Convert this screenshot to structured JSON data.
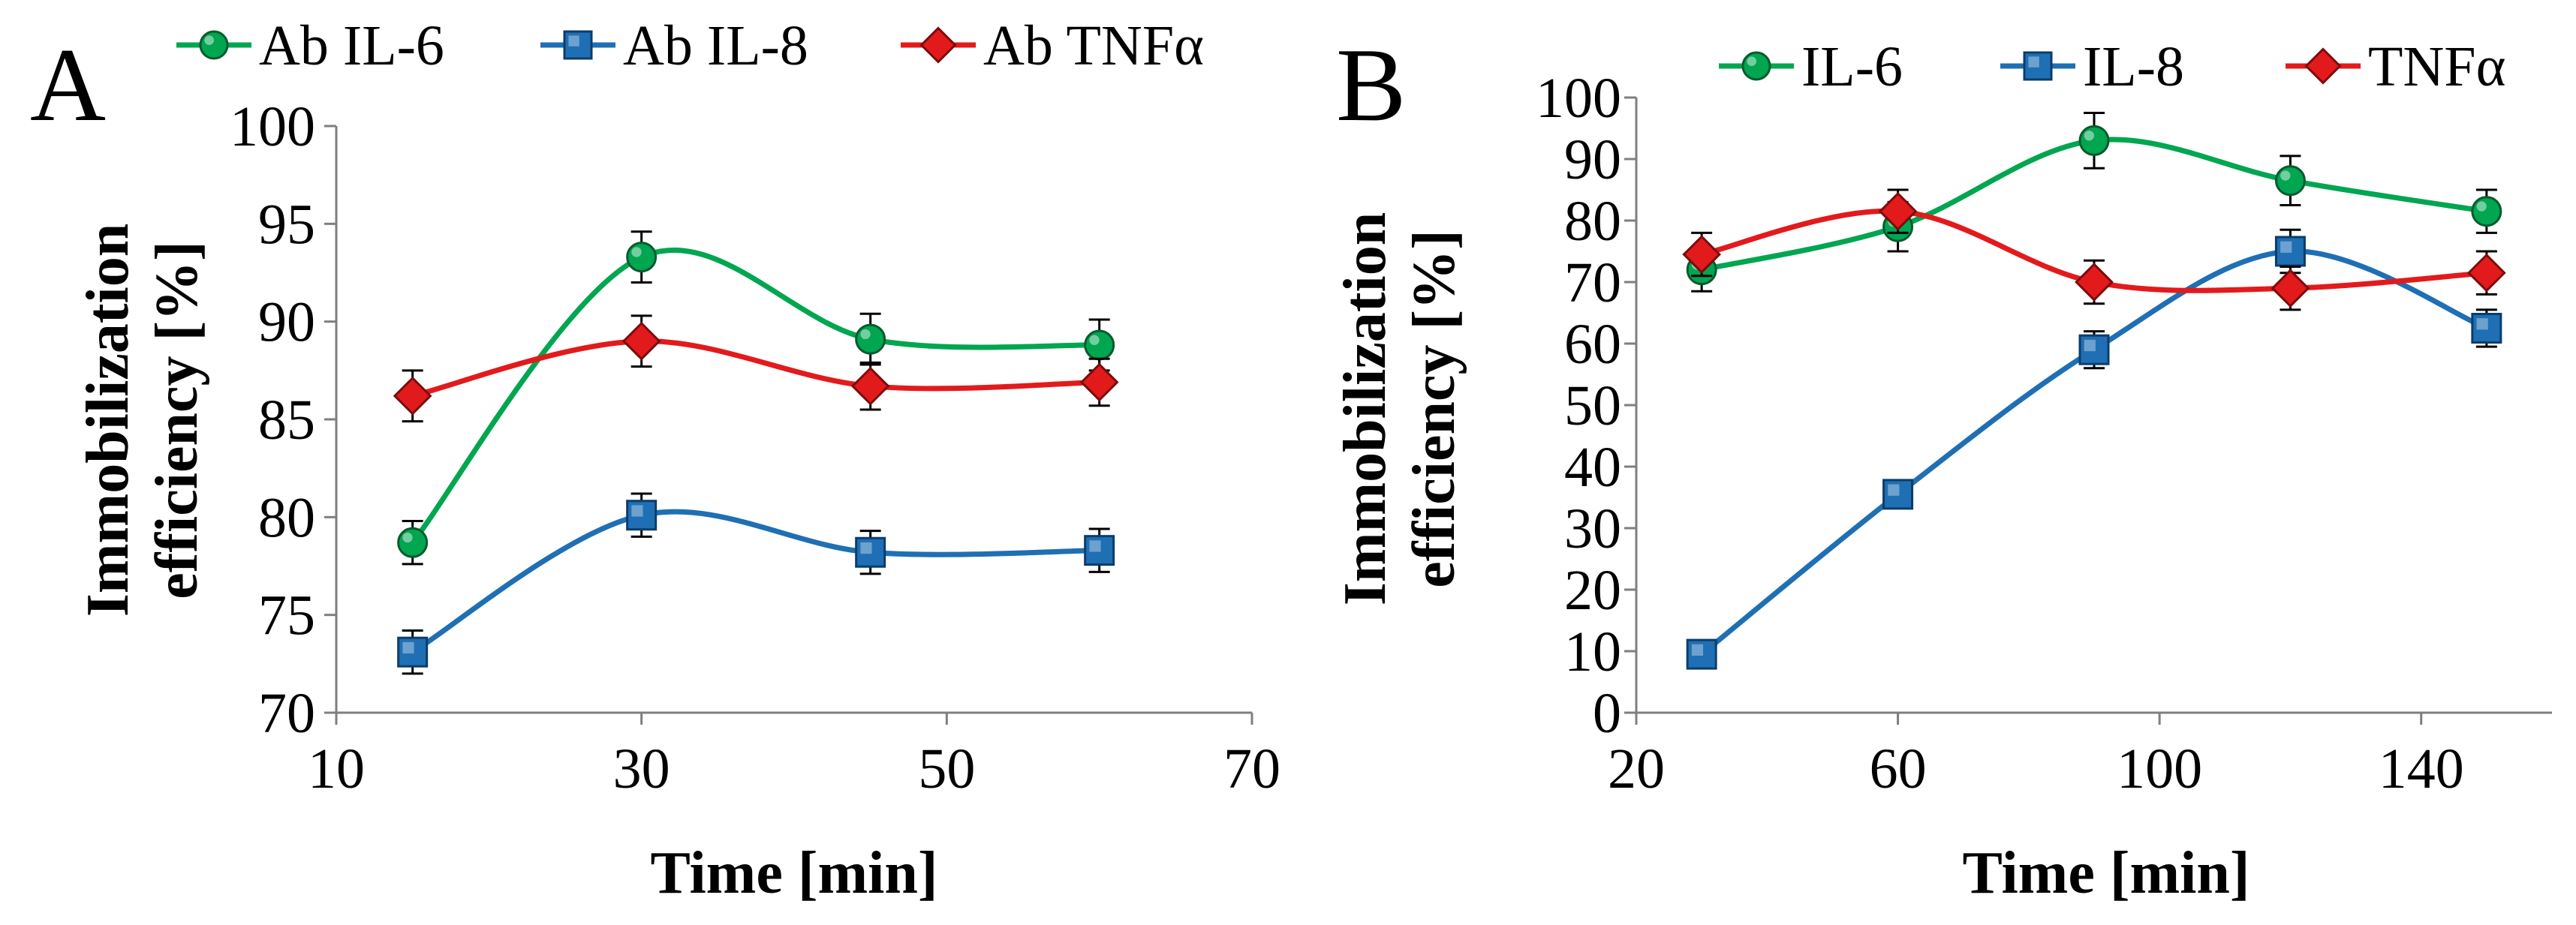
{
  "chart_data": [
    {
      "type": "line",
      "panel_label": "A",
      "title": "",
      "xlabel": "Time [min]",
      "ylabel_lines": [
        "Immobilization",
        "efficiency [%]"
      ],
      "xlim": [
        10,
        70
      ],
      "ylim": [
        70,
        100
      ],
      "x_ticks": [
        10,
        30,
        50,
        70
      ],
      "y_ticks": [
        70,
        75,
        80,
        85,
        90,
        95,
        100
      ],
      "grid": false,
      "legend_position": "top",
      "x": [
        15,
        30,
        45,
        60
      ],
      "series": [
        {
          "name": "Ab IL-6",
          "color": "#00a650",
          "marker": "circle",
          "values": [
            78.7,
            93.3,
            89.1,
            88.8
          ],
          "errors": [
            1.1,
            1.3,
            1.3,
            1.3
          ]
        },
        {
          "name": "Ab IL-8",
          "color": "#1f6fb4",
          "marker": "square",
          "values": [
            73.1,
            80.1,
            78.2,
            78.3
          ],
          "errors": [
            1.1,
            1.1,
            1.1,
            1.1
          ]
        },
        {
          "name": "Ab TNFα",
          "color": "#e31a1c",
          "marker": "diamond",
          "values": [
            86.2,
            89.0,
            86.7,
            86.9
          ],
          "errors": [
            1.3,
            1.3,
            1.2,
            1.2
          ]
        }
      ]
    },
    {
      "type": "line",
      "panel_label": "B",
      "title": "",
      "xlabel": "Time [min]",
      "ylabel_lines": [
        "Immobilization",
        "efficiency [%]"
      ],
      "xlim": [
        20,
        160
      ],
      "ylim": [
        0,
        100
      ],
      "x_ticks": [
        20,
        60,
        100,
        140
      ],
      "y_ticks": [
        0,
        10,
        20,
        30,
        40,
        50,
        60,
        70,
        80,
        90,
        100
      ],
      "grid": false,
      "legend_position": "top",
      "x": [
        30,
        60,
        90,
        120,
        150
      ],
      "series": [
        {
          "name": "IL-6",
          "color": "#00a650",
          "marker": "circle",
          "values": [
            72,
            79,
            93,
            86.5,
            81.5
          ],
          "errors": [
            3.5,
            4,
            4.5,
            4,
            3.5
          ]
        },
        {
          "name": "IL-8",
          "color": "#1f6fb4",
          "marker": "square",
          "values": [
            9.5,
            35.5,
            59,
            75,
            62.5
          ],
          "errors": [
            1,
            1.5,
            3,
            3.5,
            3
          ]
        },
        {
          "name": "TNFα",
          "color": "#e31a1c",
          "marker": "diamond",
          "values": [
            74.5,
            81.5,
            70,
            69,
            71.5
          ],
          "errors": [
            3.5,
            3.5,
            3.5,
            3.5,
            3.5
          ]
        }
      ]
    }
  ]
}
